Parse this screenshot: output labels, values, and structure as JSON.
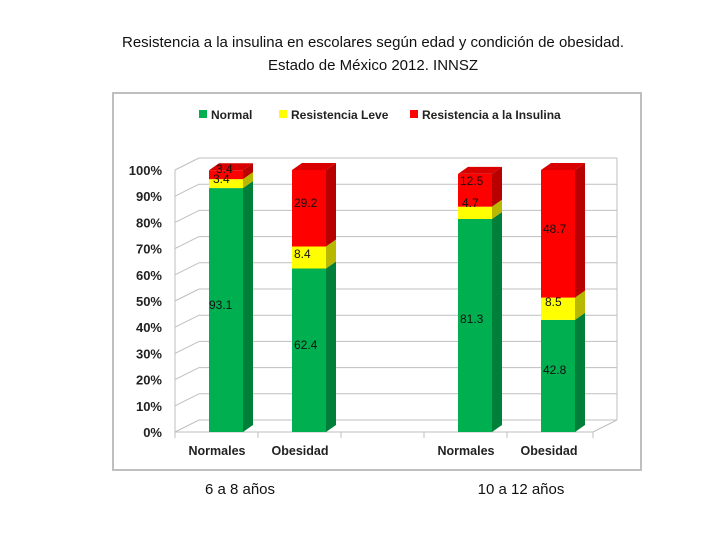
{
  "title_line1": "Resistencia a la insulina en escolares  según edad y condición de obesidad.",
  "title_line2": "Estado de México 2012. INNSZ",
  "chart_data": {
    "type": "bar",
    "stacked": true,
    "percent": true,
    "categories": [
      "Normales",
      "Obesidad",
      "Normales",
      "Obesidad"
    ],
    "groups": [
      {
        "label": "6 a 8 años",
        "categories": [
          "Normales",
          "Obesidad"
        ]
      },
      {
        "label": "10 a 12 años",
        "categories": [
          "Normales",
          "Obesidad"
        ]
      }
    ],
    "series": [
      {
        "name": "Normal",
        "color": "#00b050",
        "values": [
          93.1,
          62.4,
          81.3,
          42.8
        ]
      },
      {
        "name": "Resistencia Leve",
        "color": "#ffff00",
        "values": [
          3.4,
          8.4,
          4.7,
          8.5
        ]
      },
      {
        "name": "Resistencia a la Insulina",
        "color": "#ff0000",
        "values": [
          3.4,
          29.2,
          12.5,
          48.7
        ]
      }
    ],
    "y_ticks": [
      "0%",
      "10%",
      "20%",
      "30%",
      "40%",
      "50%",
      "60%",
      "70%",
      "80%",
      "90%",
      "100%"
    ],
    "ylim": [
      0,
      100
    ],
    "grid": true,
    "legend_position": "top"
  }
}
